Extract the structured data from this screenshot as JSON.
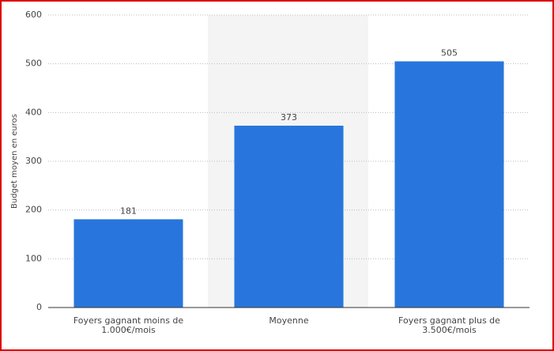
{
  "chart_data": {
    "type": "bar",
    "y_label": "Budget moyen en euros",
    "categories": [
      "Foyers gagnant moins de 1.000€/mois",
      "Moyenne",
      "Foyers gagnant plus de 3.500€/mois"
    ],
    "values": [
      181,
      373,
      505
    ],
    "color": "#2876dd",
    "ylim": [
      0,
      600
    ],
    "yticks": [
      0,
      100,
      200,
      300,
      400,
      500,
      600
    ],
    "grid": true
  }
}
